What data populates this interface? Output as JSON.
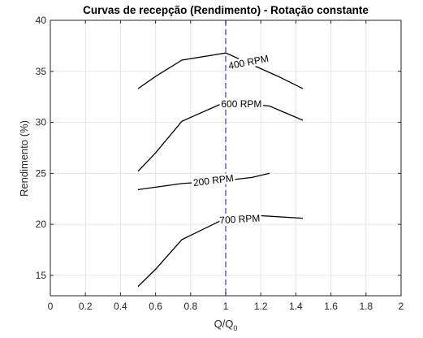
{
  "chart_data": {
    "type": "line",
    "title": "Curvas de recepção (Rendimento) - Rotação constante",
    "xlabel": "Q/Q",
    "xlabel_subscript": "0",
    "ylabel": "Rendimento (%)",
    "xlim": [
      0,
      2
    ],
    "ylim": [
      13,
      40
    ],
    "xticks": [
      0,
      0.2,
      0.4,
      0.6,
      0.8,
      1,
      1.2,
      1.4,
      1.6,
      1.8,
      2
    ],
    "xtick_labels": [
      "0",
      "0.2",
      "0.4",
      "0.6",
      "0.8",
      "1",
      "1.2",
      "1.4",
      "1.6",
      "1.8",
      "2"
    ],
    "yticks": [
      15,
      20,
      25,
      30,
      35,
      40
    ],
    "ytick_labels": [
      "15",
      "20",
      "25",
      "30",
      "35",
      "40"
    ],
    "grid": true,
    "colors": {
      "series": "#000000",
      "reference_line": "#6b6bd6",
      "grid": "#e6e6e6",
      "axes": "#262626"
    },
    "reference_line": {
      "x": 1,
      "style": "dashed"
    },
    "series": [
      {
        "name": "400 RPM",
        "label_at": {
          "x": 1.13,
          "y": 35.9,
          "rotation": -11
        },
        "points": [
          [
            0.5,
            33.3
          ],
          [
            0.6,
            34.5
          ],
          [
            0.75,
            36.1
          ],
          [
            1.0,
            36.8
          ],
          [
            1.3,
            34.5
          ],
          [
            1.44,
            33.3
          ]
        ]
      },
      {
        "name": "600 RPM",
        "label_at": {
          "x": 1.09,
          "y": 31.8,
          "rotation": 0
        },
        "points": [
          [
            0.5,
            25.2
          ],
          [
            0.6,
            27.0
          ],
          [
            0.75,
            30.1
          ],
          [
            1.0,
            32.0
          ],
          [
            1.25,
            31.6
          ],
          [
            1.44,
            30.2
          ]
        ]
      },
      {
        "name": "200 RPM",
        "label_at": {
          "x": 0.93,
          "y": 24.3,
          "rotation": -7
        },
        "points": [
          [
            0.5,
            23.4
          ],
          [
            0.75,
            24.0
          ],
          [
            1.0,
            24.3
          ],
          [
            1.15,
            24.6
          ],
          [
            1.25,
            25.0
          ]
        ]
      },
      {
        "name": "700 RPM",
        "label_at": {
          "x": 1.08,
          "y": 20.5,
          "rotation": -3
        },
        "points": [
          [
            0.5,
            13.9
          ],
          [
            0.6,
            15.6
          ],
          [
            0.75,
            18.5
          ],
          [
            1.0,
            20.6
          ],
          [
            1.15,
            20.9
          ],
          [
            1.44,
            20.6
          ]
        ]
      }
    ]
  }
}
